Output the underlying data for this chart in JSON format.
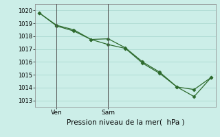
{
  "line1_x": [
    0,
    2,
    4,
    6,
    8,
    10,
    12,
    14,
    16,
    18,
    20
  ],
  "line1_y": [
    1019.8,
    1018.8,
    1018.4,
    1017.75,
    1017.8,
    1017.1,
    1016.0,
    1015.2,
    1014.05,
    1013.85,
    1014.8
  ],
  "line2_x": [
    0,
    2,
    4,
    6,
    8,
    10,
    12,
    14,
    16,
    18,
    20
  ],
  "line2_y": [
    1019.8,
    1018.85,
    1018.5,
    1017.75,
    1017.35,
    1017.05,
    1015.9,
    1015.1,
    1014.05,
    1013.3,
    1014.8
  ],
  "ven_x": 2,
  "sam_x": 8,
  "xlim": [
    -0.5,
    20.5
  ],
  "ylim": [
    1012.5,
    1020.5
  ],
  "yticks": [
    1013,
    1014,
    1015,
    1016,
    1017,
    1018,
    1019,
    1020
  ],
  "line_color": "#2d6a2d",
  "bg_color": "#cceee8",
  "grid_color": "#aad8d0",
  "vline_color": "#555555",
  "xlabel": "Pression niveau de la mer(  hPa )",
  "marker": "D",
  "markersize": 2.5,
  "linewidth": 0.9,
  "ytick_fontsize": 6.0,
  "xtick_fontsize": 6.5,
  "xlabel_fontsize": 7.5
}
